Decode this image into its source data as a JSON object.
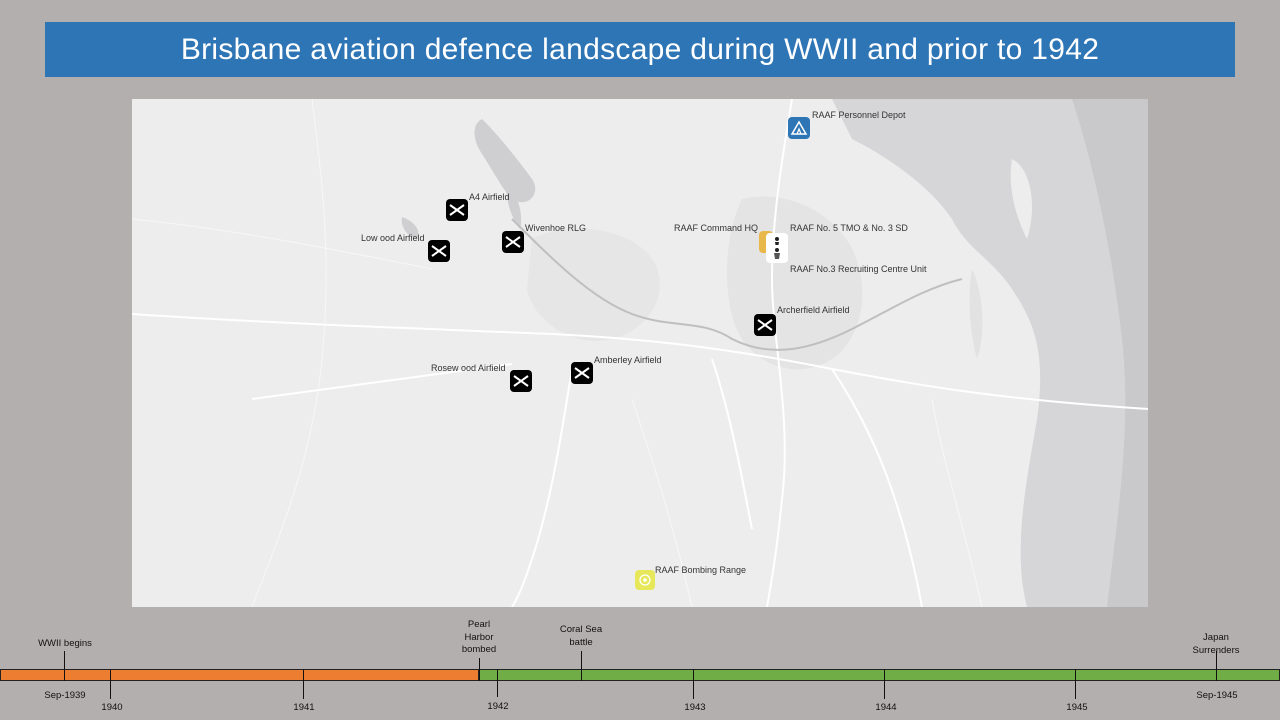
{
  "slide": {
    "title": "Brisbane aviation defence landscape during WWII and prior to 1942"
  },
  "map": {
    "markers": [
      {
        "label": "RAAF Personnel Depot",
        "icon": "tent-icon",
        "color": "#2e75b6"
      },
      {
        "label": "A4 Airfield",
        "icon": "airfield-icon",
        "color": "#000000"
      },
      {
        "label": "Wivenhoe RLG",
        "icon": "airfield-icon",
        "color": "#000000"
      },
      {
        "label": "Low ood Airfield",
        "icon": "airfield-icon",
        "color": "#000000"
      },
      {
        "label": "RAAF Command HQ",
        "icon": "hq-icon",
        "color": "#e8b84a"
      },
      {
        "label": "RAAF No. 5 TMO & No. 3 SD",
        "icon": "person-icon",
        "color": "#ffffff"
      },
      {
        "label": "RAAF No.3 Recruiting Centre Unit",
        "icon": "recruit-icon",
        "color": "#ffffff"
      },
      {
        "label": "Archerfield Airfield",
        "icon": "airfield-icon",
        "color": "#000000"
      },
      {
        "label": "Rosew ood Airfield",
        "icon": "airfield-icon",
        "color": "#000000"
      },
      {
        "label": "Amberley Airfield",
        "icon": "airfield-icon",
        "color": "#000000"
      },
      {
        "label": "RAAF Bombing Range",
        "icon": "target-icon",
        "color": "#e6e85a"
      }
    ]
  },
  "timeline": {
    "colors": {
      "pre_war": "#ed7d31",
      "war": "#70ad47"
    },
    "years": [
      "1940",
      "1941",
      "1942",
      "1943",
      "1944",
      "1945"
    ],
    "start_label": "Sep-1939",
    "end_label": "Sep-1945",
    "events": {
      "wwii_begins": "WWII begins",
      "pearl_harbor": "Pearl Harbor bombed",
      "coral_sea": "Coral Sea battle",
      "japan_surrenders": "Japan Surrenders"
    }
  }
}
